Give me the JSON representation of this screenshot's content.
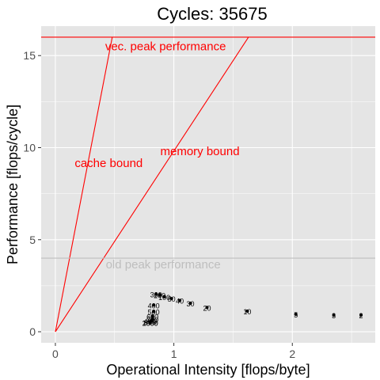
{
  "chart_data": {
    "type": "scatter",
    "title": "Cycles:  35675",
    "xlabel": "Operational Intensity [flops/byte]",
    "ylabel": "Performance [flops/cycle]",
    "xlim": [
      -0.12,
      2.7
    ],
    "ylim": [
      -0.6,
      16.6
    ],
    "x_ticks": [
      0,
      1,
      2
    ],
    "y_ticks": [
      0,
      5,
      10,
      15
    ],
    "grid": true,
    "background": "#E5E5E5",
    "grid_color": "#FFFFFF",
    "roofline_color": "#FF0000",
    "old_peak_color": "#BEBEBE",
    "point_color": "#000000",
    "lines": [
      {
        "name": "vec-peak",
        "x": [
          -0.12,
          2.7
        ],
        "y": [
          16,
          16
        ],
        "color": "#FF0000"
      },
      {
        "name": "cache-bound",
        "x": [
          0,
          0.48
        ],
        "y": [
          0,
          16
        ],
        "color": "#FF0000"
      },
      {
        "name": "memory-bound",
        "x": [
          0,
          1.63
        ],
        "y": [
          0,
          16
        ],
        "color": "#FF0000"
      },
      {
        "name": "old-peak",
        "x": [
          -0.12,
          2.7
        ],
        "y": [
          4,
          4
        ],
        "color": "#BEBEBE"
      }
    ],
    "annotations": [
      {
        "text": "vec. peak performance",
        "x": 0.93,
        "y": 15.55,
        "color": "#FF0000"
      },
      {
        "text": "cache bound",
        "x": 0.45,
        "y": 9.2,
        "color": "#FF0000"
      },
      {
        "text": "memory bound",
        "x": 1.22,
        "y": 9.85,
        "color": "#FF0000"
      },
      {
        "text": "old peak performance",
        "x": 0.91,
        "y": 3.7,
        "color": "#BEBEBE"
      }
    ],
    "points": [
      {
        "x": 2.58,
        "y": 0.9,
        "label": "2"
      },
      {
        "x": 2.35,
        "y": 0.9,
        "label": "3"
      },
      {
        "x": 2.03,
        "y": 0.95,
        "label": "5"
      },
      {
        "x": 1.62,
        "y": 1.12,
        "label": "10"
      },
      {
        "x": 1.28,
        "y": 1.32,
        "label": "20"
      },
      {
        "x": 1.14,
        "y": 1.55,
        "label": "30"
      },
      {
        "x": 1.05,
        "y": 1.7,
        "label": "40"
      },
      {
        "x": 0.98,
        "y": 1.8,
        "label": "50"
      },
      {
        "x": 0.92,
        "y": 1.9,
        "label": "100"
      },
      {
        "x": 0.88,
        "y": 2.0,
        "label": "200"
      },
      {
        "x": 0.85,
        "y": 2.05,
        "label": "300"
      },
      {
        "x": 0.83,
        "y": 1.45,
        "label": "400"
      },
      {
        "x": 0.83,
        "y": 1.1,
        "label": "500"
      },
      {
        "x": 0.82,
        "y": 0.85,
        "label": "600"
      },
      {
        "x": 0.82,
        "y": 0.7,
        "label": "700"
      },
      {
        "x": 0.81,
        "y": 0.6,
        "label": "800"
      },
      {
        "x": 0.8,
        "y": 0.55,
        "label": "900"
      },
      {
        "x": 0.8,
        "y": 0.5,
        "label": "1000"
      },
      {
        "x": 0.8,
        "y": 0.5,
        "label": "2000"
      }
    ]
  }
}
